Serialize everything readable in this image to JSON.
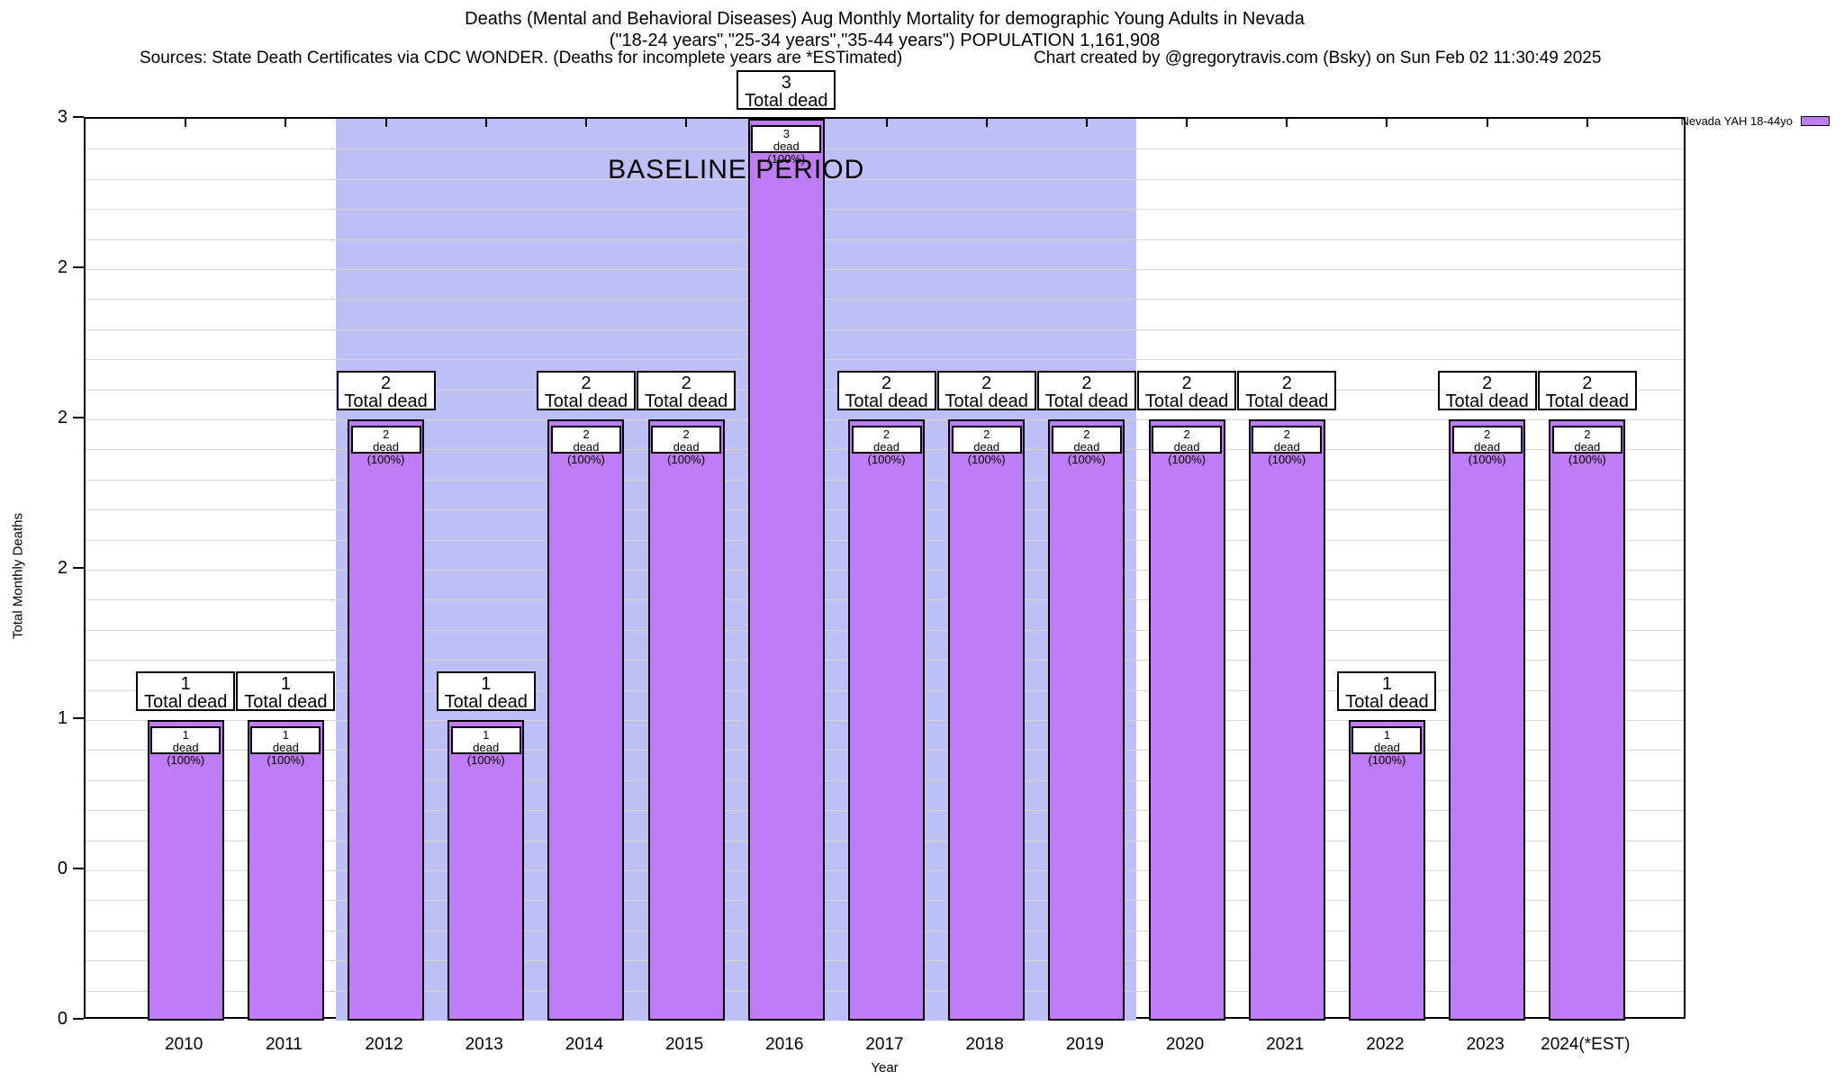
{
  "header": {
    "title_line1": "Deaths (Mental and Behavioral Diseases) Aug Monthly Mortality for demographic Young Adults in Nevada",
    "title_line2": "(\"18-24 years\",\"25-34 years\",\"35-44 years\") POPULATION 1,161,908",
    "sources": "Sources: State Death Certificates via CDC WONDER. (Deaths for incomplete years are *ESTimated)",
    "credit": "Chart created by @gregorytravis.com (Bsky) on Sun Feb 02 11:30:49 2025"
  },
  "legend": {
    "label": "Nevada YAH 18-44yo",
    "color": "#bf7df5"
  },
  "chart_data": {
    "type": "bar",
    "title": "Deaths (Mental and Behavioral Diseases) Aug Monthly Mortality for demographic Young Adults in Nevada",
    "subtitle": "(\"18-24 years\",\"25-34 years\",\"35-44 years\") POPULATION 1,161,908",
    "categories": [
      "2010",
      "2011",
      "2012",
      "2013",
      "2014",
      "2015",
      "2016",
      "2017",
      "2018",
      "2019",
      "2020",
      "2021",
      "2022",
      "2023",
      "2024(*EST)"
    ],
    "years": [
      2010,
      2011,
      2012,
      2013,
      2014,
      2015,
      2016,
      2017,
      2018,
      2019,
      2020,
      2021,
      2022,
      2023,
      2024
    ],
    "series": [
      {
        "name": "Nevada YAH 18-44yo",
        "color": "#bf7df5",
        "values": [
          1,
          1,
          2,
          1,
          2,
          2,
          3,
          2,
          2,
          2,
          2,
          2,
          1,
          2,
          2
        ]
      }
    ],
    "bar_top_annotation": "Total dead",
    "bar_inner_annotation": "dead (100%)",
    "xlabel": "Year",
    "ylabel": "Total Monthly Deaths",
    "ylim": [
      0,
      3
    ],
    "x_axis_range": [
      2009,
      2025
    ],
    "ytick_values": [
      0,
      0.5,
      1,
      1.5,
      2,
      2.5,
      3
    ],
    "ytick_labels": [
      "0",
      "0",
      "1",
      "2",
      "2",
      "2",
      "3"
    ],
    "minor_grid_step": 0.1,
    "grid": true,
    "legend_position": "top-right",
    "baseline": {
      "label": "BASELINE PERIOD",
      "from_year": 2011.5,
      "to_year": 2019.5,
      "color": "#bfbff8"
    },
    "bar_color": "#bf7df5",
    "bar_border_color": "#000000"
  }
}
